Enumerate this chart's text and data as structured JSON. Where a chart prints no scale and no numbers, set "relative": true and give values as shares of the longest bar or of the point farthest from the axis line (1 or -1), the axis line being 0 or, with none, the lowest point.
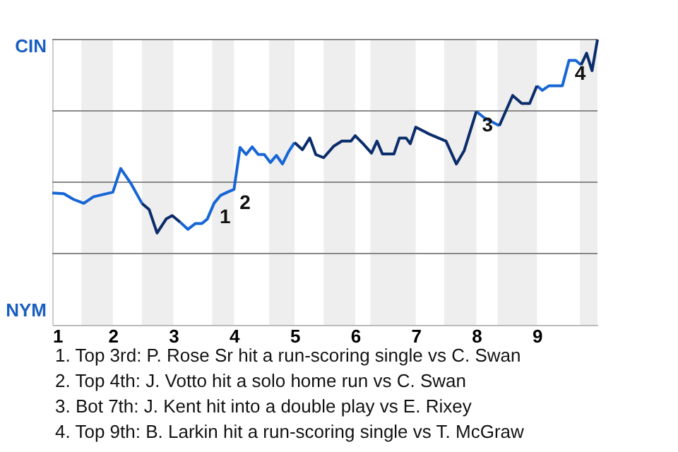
{
  "chart_data": {
    "type": "line",
    "relative": true,
    "x": [
      1,
      1.19,
      1.35,
      1.52,
      1.68,
      1.84,
      2,
      2.13,
      2.3,
      2.48,
      2.6,
      2.73,
      2.88,
      2.98,
      3.11,
      3.24,
      3.36,
      3.47,
      3.56,
      3.67,
      3.78,
      3.89,
      4,
      4.1,
      4.2,
      4.3,
      4.4,
      4.5,
      4.6,
      4.7,
      4.8,
      4.9,
      5,
      5.13,
      5.25,
      5.35,
      5.48,
      5.65,
      5.78,
      5.93,
      6,
      6.13,
      6.27,
      6.36,
      6.45,
      6.64,
      6.73,
      6.84,
      6.91,
      7,
      7.23,
      7.5,
      7.67,
      7.8,
      8,
      8.13,
      8.38,
      8.6,
      8.75,
      8.88,
      9,
      9.09,
      9.2,
      9.42,
      9.53,
      9.64,
      9.73,
      9.82,
      9.91,
      10
    ],
    "series": [
      {
        "color": "#1766d6",
        "values": [
          0.462,
          0.46,
          0.44,
          0.426,
          0.449,
          0.457,
          0.465,
          0.548,
          0.495,
          0.426,
          null,
          null,
          null,
          null,
          0.36,
          0.335,
          0.355,
          0.355,
          0.371,
          0.426,
          0.454,
          0.465,
          0.475,
          0.622,
          0.597,
          0.624,
          0.597,
          0.597,
          0.569,
          0.594,
          0.564,
          0.607,
          0.639,
          null,
          null,
          null,
          null,
          null,
          null,
          null,
          null,
          null,
          null,
          null,
          null,
          null,
          null,
          null,
          null,
          null,
          null,
          null,
          null,
          null,
          0.748,
          0.726,
          0.698,
          null,
          null,
          null,
          0.838,
          0.822,
          0.838,
          0.838,
          0.927,
          0.927,
          0.911,
          null,
          null,
          null
        ]
      },
      {
        "color": "#0c2d6b",
        "values": [
          null,
          null,
          null,
          null,
          null,
          null,
          null,
          null,
          null,
          0.426,
          0.404,
          0.322,
          0.371,
          0.383,
          0.36,
          null,
          null,
          null,
          null,
          null,
          null,
          null,
          null,
          null,
          null,
          null,
          null,
          null,
          null,
          null,
          null,
          null,
          0.639,
          0.614,
          0.655,
          0.597,
          0.586,
          0.627,
          0.644,
          0.644,
          0.663,
          0.635,
          0.602,
          0.644,
          0.599,
          0.599,
          0.655,
          0.655,
          0.635,
          0.693,
          0.668,
          0.644,
          0.564,
          0.611,
          0.748,
          null,
          0.698,
          0.804,
          0.776,
          0.776,
          0.838,
          null,
          null,
          null,
          null,
          null,
          0.911,
          0.952,
          0.891,
          1
        ]
      }
    ],
    "xlim": [
      1,
      10
    ],
    "xticks": [
      1,
      2,
      3,
      4,
      5,
      6,
      7,
      8,
      9
    ],
    "ref_lines": [
      {
        "axis": "y",
        "value": 0.25,
        "color": "#888888"
      },
      {
        "axis": "y",
        "value": 0.5,
        "color": "#888888"
      },
      {
        "axis": "y",
        "value": 0.75,
        "color": "#888888"
      },
      {
        "axis": "y",
        "value": 1,
        "color": "#888888"
      }
    ],
    "bands": [
      {
        "axis": "x",
        "from": 1.48,
        "to": 2,
        "color": "#eeeeee"
      },
      {
        "axis": "x",
        "from": 2.48,
        "to": 3,
        "color": "#eeeeee"
      },
      {
        "axis": "x",
        "from": 3.64,
        "to": 4,
        "color": "#eeeeee"
      },
      {
        "axis": "x",
        "from": 4.58,
        "to": 5,
        "color": "#eeeeee"
      },
      {
        "axis": "x",
        "from": 5.48,
        "to": 6,
        "color": "#eeeeee"
      },
      {
        "axis": "x",
        "from": 6.25,
        "to": 7,
        "color": "#eeeeee"
      },
      {
        "axis": "x",
        "from": 7.47,
        "to": 8,
        "color": "#eeeeee"
      },
      {
        "axis": "x",
        "from": 8.35,
        "to": 9,
        "color": "#eeeeee"
      },
      {
        "axis": "x",
        "from": 9.71,
        "to": 10,
        "color": "#eeeeee"
      }
    ],
    "annotations": [
      "CIN",
      "NYM",
      {
        "text": "1",
        "x": 3.67,
        "y": 0.426
      },
      {
        "text": "2",
        "x": 4,
        "y": 0.475
      },
      {
        "text": "3",
        "x": 8,
        "y": 0.748
      },
      {
        "text": "4",
        "x": 9.53,
        "y": 0.927
      },
      "1. Top 3rd: P. Rose Sr hit a run-scoring single vs C. Swan",
      "2. Top 4th: J. Votto hit a solo home run vs C. Swan",
      "3. Bot 7th: J. Kent hit into a double play vs E. Rixey",
      "4. Top 9th: B. Larkin hit a run-scoring single vs T. McGraw"
    ]
  }
}
